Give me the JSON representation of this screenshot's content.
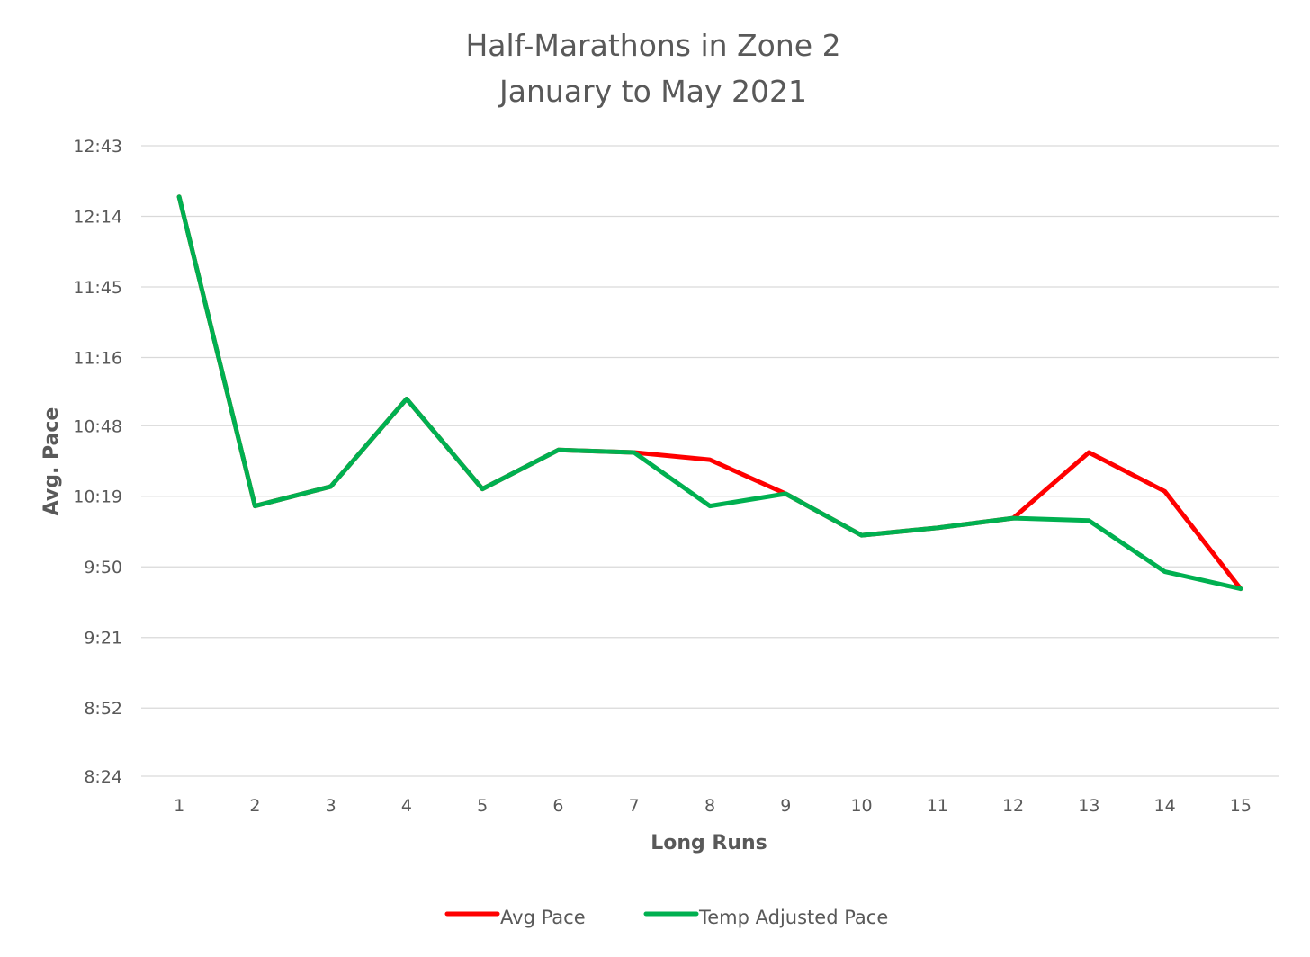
{
  "chart_data": {
    "type": "line",
    "title": "Half-Marathons in Zone 2",
    "subtitle": "January to May 2021",
    "xlabel": "Long Runs",
    "ylabel": "Avg. Pace",
    "categories": [
      "1",
      "2",
      "3",
      "4",
      "5",
      "6",
      "7",
      "8",
      "9",
      "10",
      "11",
      "12",
      "13",
      "14",
      "15"
    ],
    "y_unit": "pace (mm:ss per mile)",
    "ylim": [
      "8:24",
      "12:43"
    ],
    "yticks": [
      "8:24",
      "8:52",
      "9:21",
      "9:50",
      "10:19",
      "10:48",
      "11:16",
      "11:45",
      "12:14",
      "12:43"
    ],
    "grid": true,
    "legend_position": "bottom",
    "series": [
      {
        "name": "Avg Pace",
        "color": "#ff0000",
        "values": [
          "12:22",
          "10:15",
          "10:23",
          "10:59",
          "10:22",
          "10:38",
          "10:37",
          "10:34",
          "10:20",
          "10:03",
          "10:06",
          "10:10",
          "10:37",
          "10:21",
          "9:41"
        ]
      },
      {
        "name": "Temp Adjusted Pace",
        "color": "#00b050",
        "values": [
          "12:22",
          "10:15",
          "10:23",
          "10:59",
          "10:22",
          "10:38",
          "10:37",
          "10:15",
          "10:20",
          "10:03",
          "10:06",
          "10:10",
          "10:09",
          "9:48",
          "9:41"
        ]
      }
    ]
  }
}
